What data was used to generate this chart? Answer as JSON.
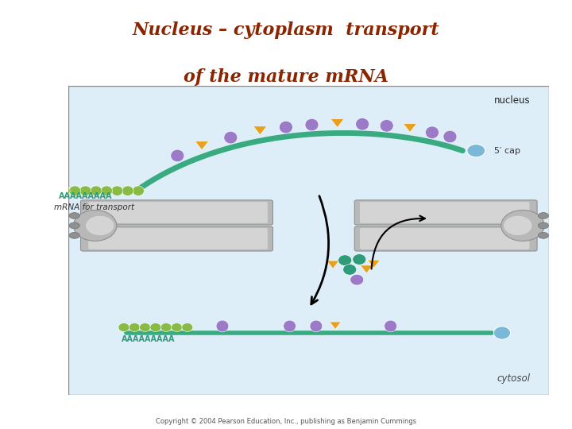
{
  "title_line1": "Nucleus – cytoplasm  transport",
  "title_line2": "of the mature mRNA",
  "title_color": "#8B2500",
  "title_fontsize": 16,
  "bg_color": "#ffffff",
  "box_bg": "#ddeef8",
  "box_border": "#888888",
  "copyright": "Copyright © 2004 Pearson Education, Inc., publishing as Benjamin Cummings",
  "label_nucleus": "nucleus",
  "label_cytosol": "cytosol",
  "label_mrna": "mRNA for transport",
  "label_5cap": "5′ cap",
  "label_aaa_top": "AAAAAAAAA",
  "label_aaa_bot": "AAAAAAAAA",
  "mrna_color": "#3aaa80",
  "cap_color": "#7ab8d8",
  "purple_color": "#9b7bc8",
  "orange_color": "#e8a020",
  "teal_color": "#2e9b7a",
  "gray_dark": "#909090",
  "gray_mid": "#b8b8b8",
  "gray_light": "#d4d4d4",
  "green_color": "#88bb44"
}
